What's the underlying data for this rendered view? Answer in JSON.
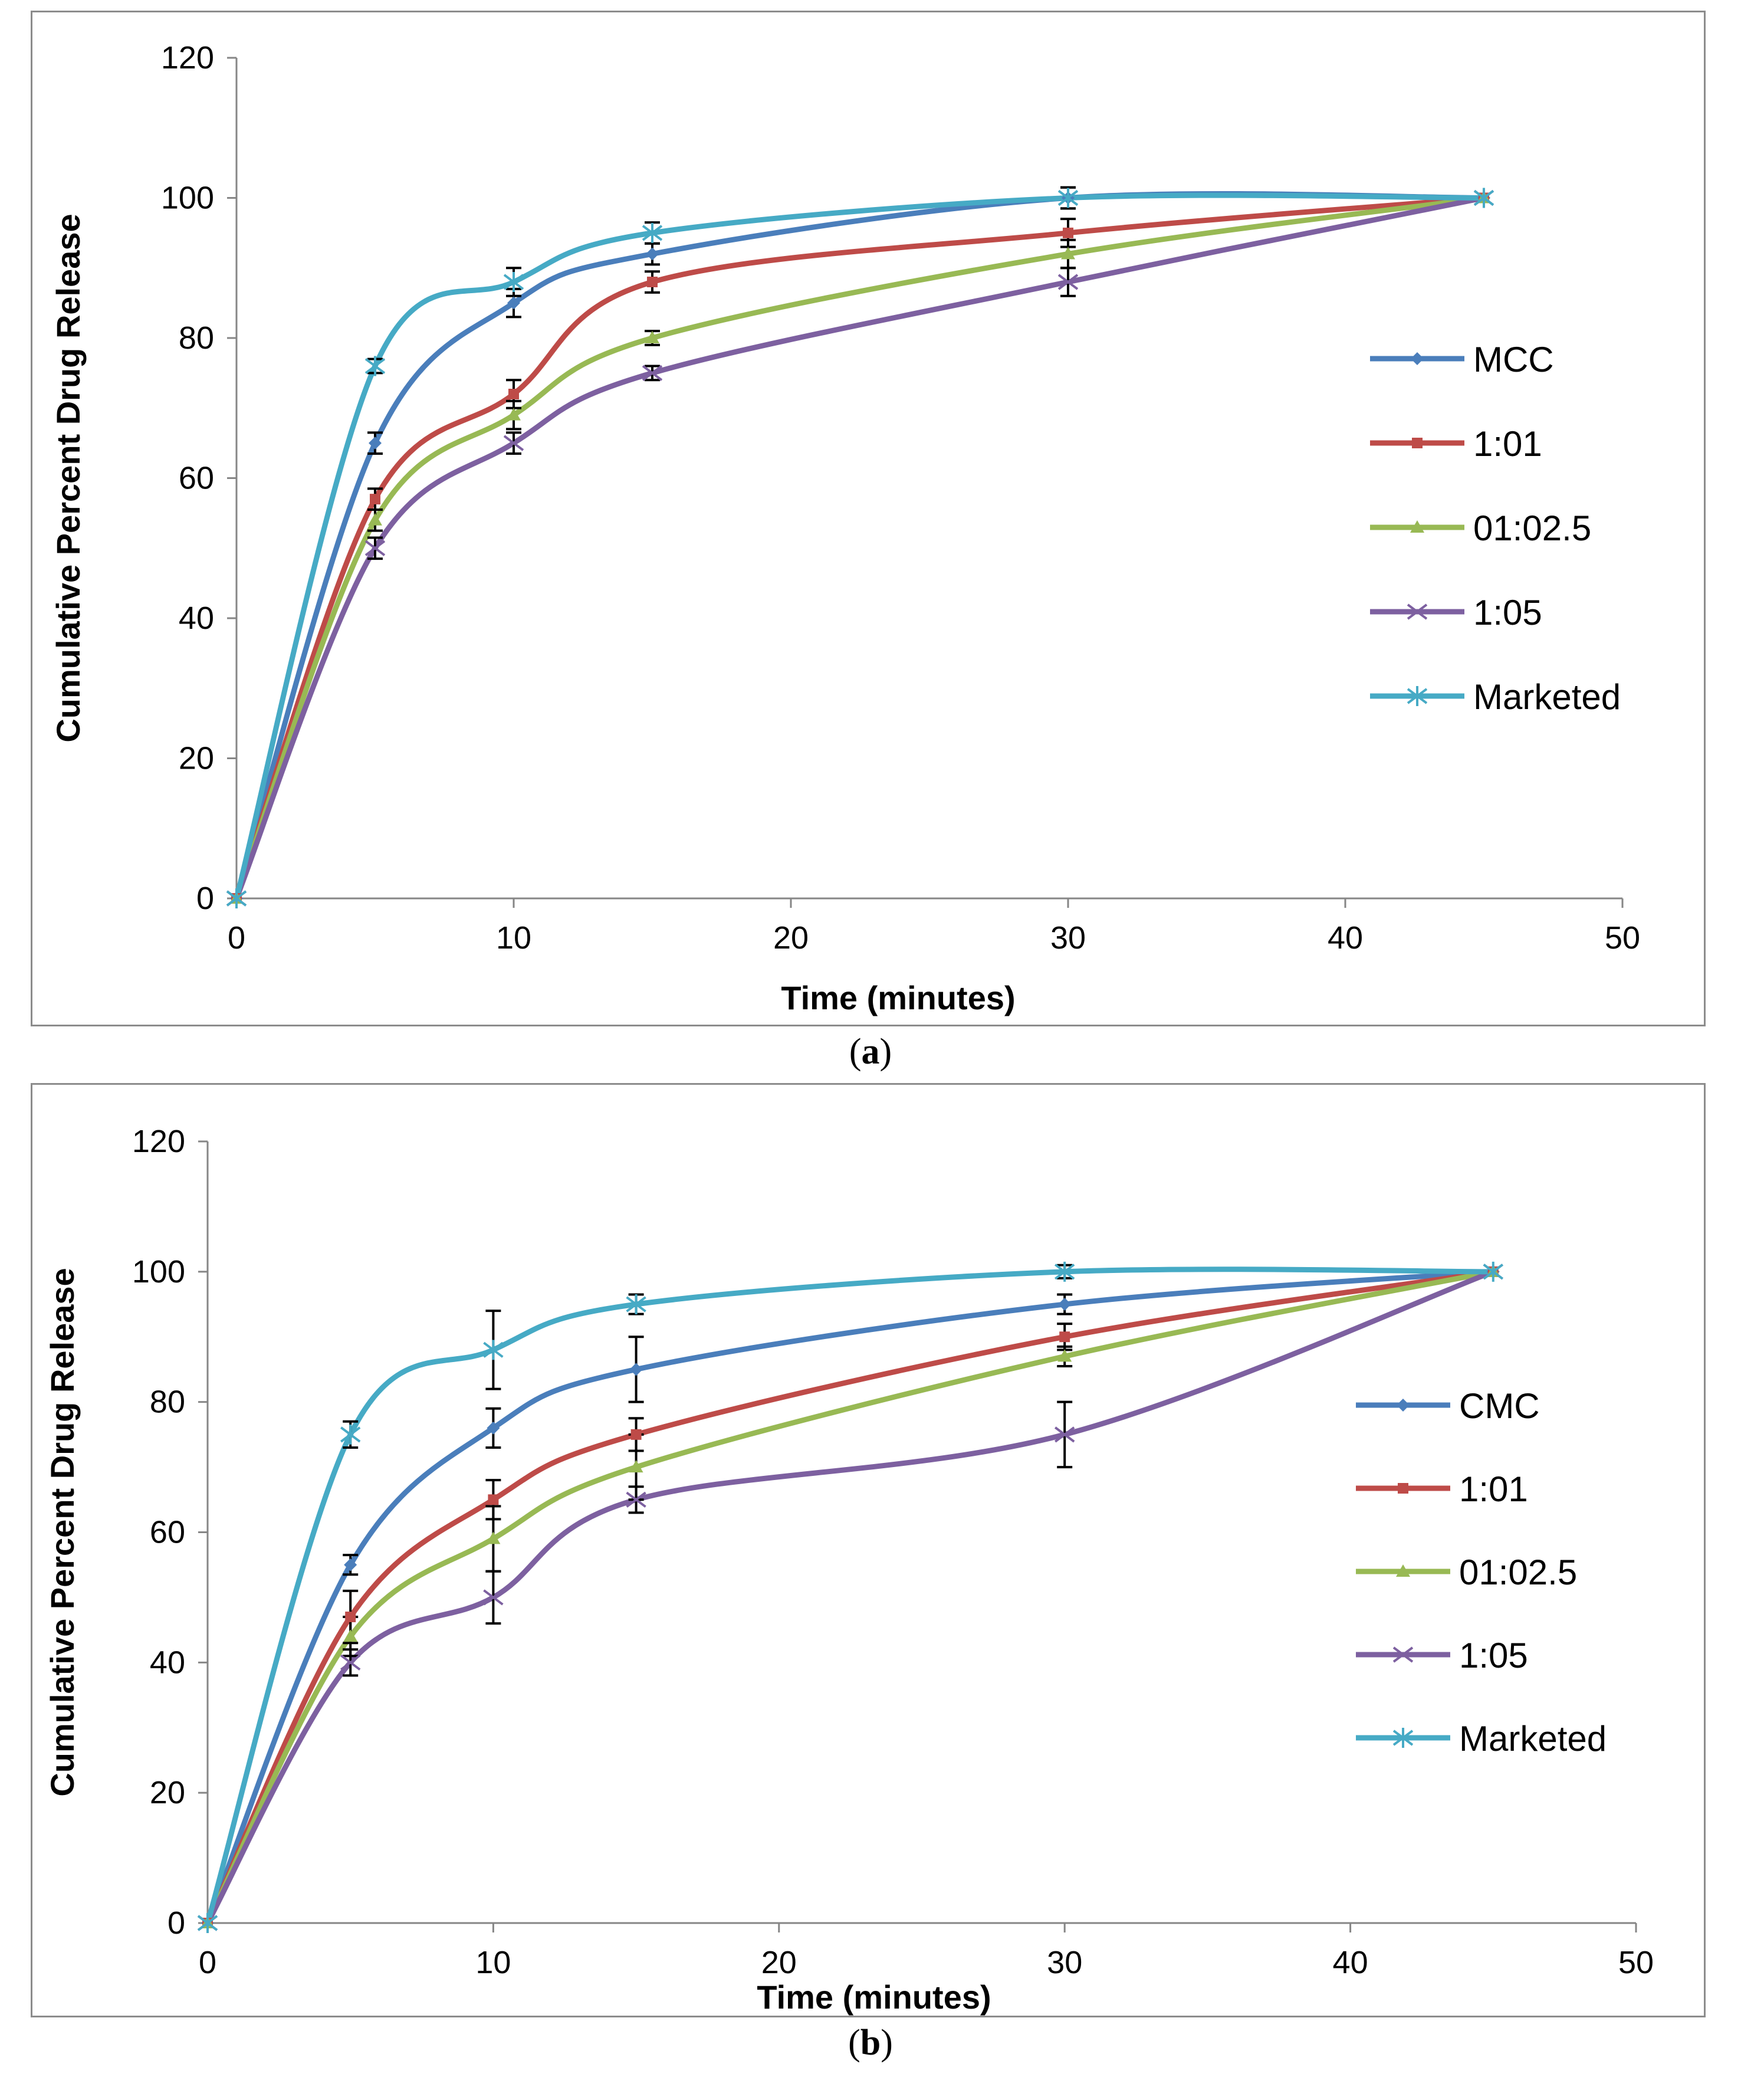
{
  "colors": {
    "blue": "#4a7ebb",
    "red": "#be4b48",
    "green": "#98b954",
    "purple": "#7d60a0",
    "cyan": "#46aac5",
    "axis": "#868686",
    "error_bar": "#000000"
  },
  "captions": [
    {
      "open": "(",
      "letter": "a",
      "close": ")"
    },
    {
      "open": "(",
      "letter": "b",
      "close": ")"
    }
  ],
  "chart_data": [
    {
      "type": "line",
      "panel": "a",
      "title": "",
      "xlabel": "Time (minutes)",
      "ylabel": "Cumulative Percent Drug Release",
      "xlim": [
        0,
        50
      ],
      "ylim": [
        0,
        120
      ],
      "xticks": [
        0,
        10,
        20,
        30,
        40,
        50
      ],
      "yticks": [
        0,
        20,
        40,
        60,
        80,
        100,
        120
      ],
      "grid": false,
      "legend_position": "right",
      "x": [
        0,
        5,
        10,
        15,
        30,
        45
      ],
      "series": [
        {
          "name": "MCC",
          "color": "blue",
          "marker": "diamond",
          "values": [
            0,
            65,
            85,
            92,
            100,
            100
          ],
          "errors": [
            0,
            1.5,
            2,
            1.5,
            1.5,
            0
          ]
        },
        {
          "name": "1:01",
          "color": "red",
          "marker": "square",
          "values": [
            0,
            57,
            72,
            88,
            95,
            100
          ],
          "errors": [
            0,
            1.5,
            2,
            1.5,
            2,
            0
          ]
        },
        {
          "name": "01:02.5",
          "color": "green",
          "marker": "triangle",
          "values": [
            0,
            54,
            69,
            80,
            92,
            100
          ],
          "errors": [
            0,
            1.5,
            2,
            1,
            2,
            0
          ]
        },
        {
          "name": "1:05",
          "color": "purple",
          "marker": "x",
          "values": [
            0,
            50,
            65,
            75,
            88,
            100
          ],
          "errors": [
            0,
            1.5,
            1.5,
            1,
            2,
            0
          ]
        },
        {
          "name": "Marketed",
          "color": "cyan",
          "marker": "star",
          "values": [
            0,
            76,
            88,
            95,
            100,
            100
          ],
          "errors": [
            0,
            1,
            2,
            1.5,
            1.5,
            0
          ]
        }
      ]
    },
    {
      "type": "line",
      "panel": "b",
      "title": "",
      "xlabel": "Time (minutes)",
      "ylabel": "Cumulative Percent Drug Release",
      "xlim": [
        0,
        50
      ],
      "ylim": [
        0,
        120
      ],
      "xticks": [
        0,
        10,
        20,
        30,
        40,
        50
      ],
      "yticks": [
        0,
        20,
        40,
        60,
        80,
        100,
        120
      ],
      "grid": false,
      "legend_position": "right",
      "x": [
        0,
        5,
        10,
        15,
        30,
        45
      ],
      "series": [
        {
          "name": "CMC",
          "color": "blue",
          "marker": "diamond",
          "values": [
            0,
            55,
            76,
            85,
            95,
            100
          ],
          "errors": [
            0,
            1.5,
            3,
            5,
            1.5,
            0
          ]
        },
        {
          "name": "1:01",
          "color": "red",
          "marker": "square",
          "values": [
            0,
            47,
            65,
            75,
            90,
            100
          ],
          "errors": [
            0,
            4,
            3,
            2.5,
            2,
            0
          ]
        },
        {
          "name": "01:02.5",
          "color": "green",
          "marker": "triangle",
          "values": [
            0,
            44,
            59,
            70,
            87,
            100
          ],
          "errors": [
            0,
            3,
            5,
            5,
            1.5,
            0
          ]
        },
        {
          "name": "1:05",
          "color": "purple",
          "marker": "x",
          "values": [
            0,
            40,
            50,
            65,
            75,
            100
          ],
          "errors": [
            0,
            2,
            4,
            2,
            5,
            0
          ]
        },
        {
          "name": "Marketed",
          "color": "cyan",
          "marker": "star",
          "values": [
            0,
            75,
            88,
            95,
            100,
            100
          ],
          "errors": [
            0,
            2,
            6,
            1.5,
            1,
            0
          ]
        }
      ]
    }
  ]
}
